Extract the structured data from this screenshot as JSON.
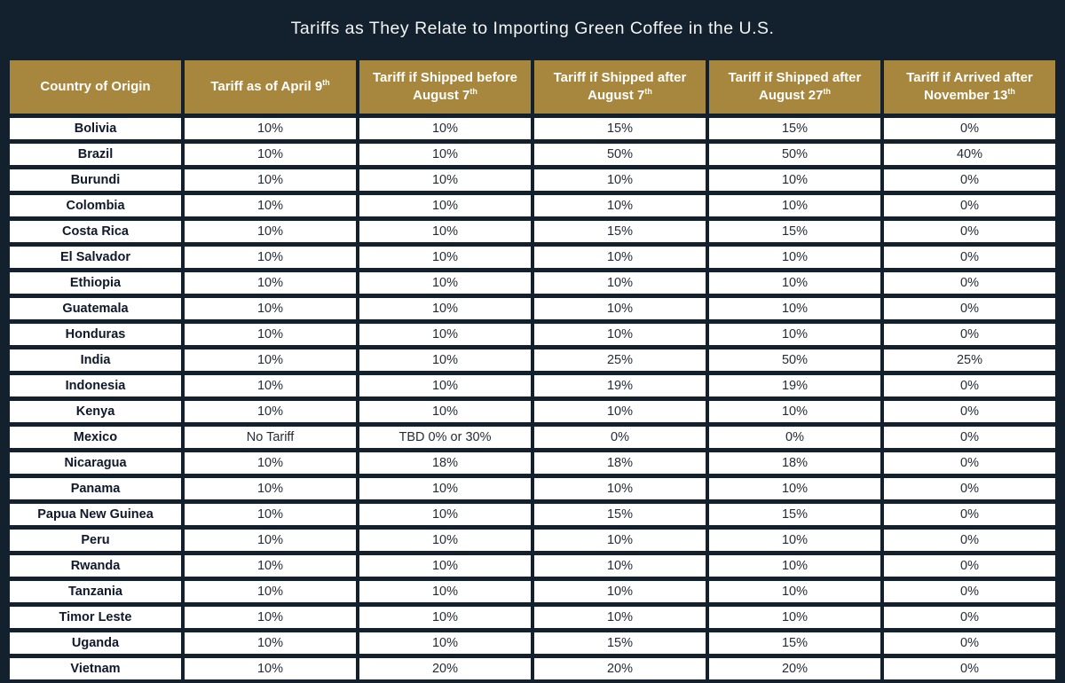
{
  "colors": {
    "navy": "#13212F",
    "gold": "#A7863D",
    "cellBorder": "#15202D",
    "countryText": "#10192A",
    "valueText": "#262C36"
  },
  "chart_data": {
    "type": "table",
    "title": "Tariffs as They Relate to Importing Green Coffee in the U.S.",
    "columns": [
      {
        "text": "Country of Origin",
        "sup": null
      },
      {
        "text": "Tariff as of April 9",
        "sup": "th"
      },
      {
        "text": "Tariff if Shipped before August 7",
        "sup": "th"
      },
      {
        "text": "Tariff if Shipped after August 7",
        "sup": "th"
      },
      {
        "text": "Tariff if Shipped after August 27",
        "sup": "th"
      },
      {
        "text": "Tariff if Arrived after November 13",
        "sup": "th"
      }
    ],
    "rows": [
      {
        "country": "Bolivia",
        "values": [
          "10%",
          "10%",
          "15%",
          "15%",
          "0%"
        ]
      },
      {
        "country": "Brazil",
        "values": [
          "10%",
          "10%",
          "50%",
          "50%",
          "40%"
        ]
      },
      {
        "country": "Burundi",
        "values": [
          "10%",
          "10%",
          "10%",
          "10%",
          "0%"
        ]
      },
      {
        "country": "Colombia",
        "values": [
          "10%",
          "10%",
          "10%",
          "10%",
          "0%"
        ]
      },
      {
        "country": "Costa Rica",
        "values": [
          "10%",
          "10%",
          "15%",
          "15%",
          "0%"
        ]
      },
      {
        "country": "El Salvador",
        "values": [
          "10%",
          "10%",
          "10%",
          "10%",
          "0%"
        ]
      },
      {
        "country": "Ethiopia",
        "values": [
          "10%",
          "10%",
          "10%",
          "10%",
          "0%"
        ]
      },
      {
        "country": "Guatemala",
        "values": [
          "10%",
          "10%",
          "10%",
          "10%",
          "0%"
        ]
      },
      {
        "country": "Honduras",
        "values": [
          "10%",
          "10%",
          "10%",
          "10%",
          "0%"
        ]
      },
      {
        "country": "India",
        "values": [
          "10%",
          "10%",
          "25%",
          "50%",
          "25%"
        ]
      },
      {
        "country": "Indonesia",
        "values": [
          "10%",
          "10%",
          "19%",
          "19%",
          "0%"
        ]
      },
      {
        "country": "Kenya",
        "values": [
          "10%",
          "10%",
          "10%",
          "10%",
          "0%"
        ]
      },
      {
        "country": "Mexico",
        "values": [
          "No Tariff",
          "TBD 0% or 30%",
          "0%",
          "0%",
          "0%"
        ]
      },
      {
        "country": "Nicaragua",
        "values": [
          "10%",
          "18%",
          "18%",
          "18%",
          "0%"
        ]
      },
      {
        "country": "Panama",
        "values": [
          "10%",
          "10%",
          "10%",
          "10%",
          "0%"
        ]
      },
      {
        "country": "Papua New Guinea",
        "values": [
          "10%",
          "10%",
          "15%",
          "15%",
          "0%"
        ]
      },
      {
        "country": "Peru",
        "values": [
          "10%",
          "10%",
          "10%",
          "10%",
          "0%"
        ]
      },
      {
        "country": "Rwanda",
        "values": [
          "10%",
          "10%",
          "10%",
          "10%",
          "0%"
        ]
      },
      {
        "country": "Tanzania",
        "values": [
          "10%",
          "10%",
          "10%",
          "10%",
          "0%"
        ]
      },
      {
        "country": "Timor Leste",
        "values": [
          "10%",
          "10%",
          "10%",
          "10%",
          "0%"
        ]
      },
      {
        "country": "Uganda",
        "values": [
          "10%",
          "10%",
          "15%",
          "15%",
          "0%"
        ]
      },
      {
        "country": "Vietnam",
        "values": [
          "10%",
          "20%",
          "20%",
          "20%",
          "0%"
        ]
      }
    ]
  }
}
